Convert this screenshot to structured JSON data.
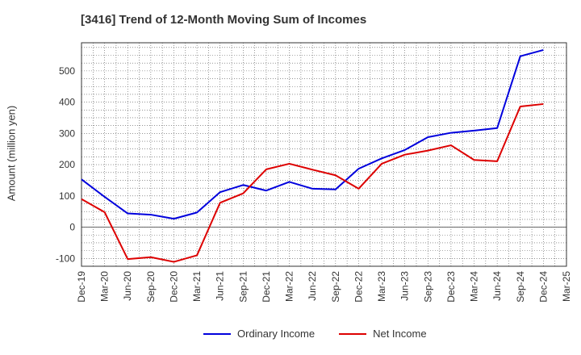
{
  "chart_data": {
    "type": "line",
    "title": "[3416]  Trend of 12-Month Moving Sum of Incomes",
    "xlabel": "",
    "ylabel": "Amount (million yen)",
    "ylim": [
      -125,
      590
    ],
    "yticks": [
      -100,
      0,
      100,
      200,
      300,
      400,
      500
    ],
    "grid": true,
    "legend_position": "bottom-center",
    "categories": [
      "Dec-19",
      "Mar-20",
      "Jun-20",
      "Sep-20",
      "Dec-20",
      "Mar-21",
      "Jun-21",
      "Sep-21",
      "Dec-21",
      "Mar-22",
      "Jun-22",
      "Sep-22",
      "Dec-22",
      "Mar-23",
      "Jun-23",
      "Sep-23",
      "Dec-23",
      "Mar-24",
      "Jun-24",
      "Sep-24",
      "Dec-24",
      "Mar-25"
    ],
    "series": [
      {
        "name": "Ordinary Income",
        "color": "#0000dd",
        "values": [
          153,
          97,
          44,
          40,
          27,
          47,
          112,
          135,
          117,
          145,
          123,
          121,
          187,
          220,
          247,
          288,
          302,
          309,
          317,
          547,
          567,
          null
        ]
      },
      {
        "name": "Net Income",
        "color": "#dd0000",
        "values": [
          90,
          48,
          -102,
          -96,
          -111,
          -90,
          78,
          108,
          185,
          203,
          184,
          166,
          123,
          203,
          232,
          245,
          262,
          215,
          211,
          386,
          394,
          null
        ]
      }
    ]
  }
}
